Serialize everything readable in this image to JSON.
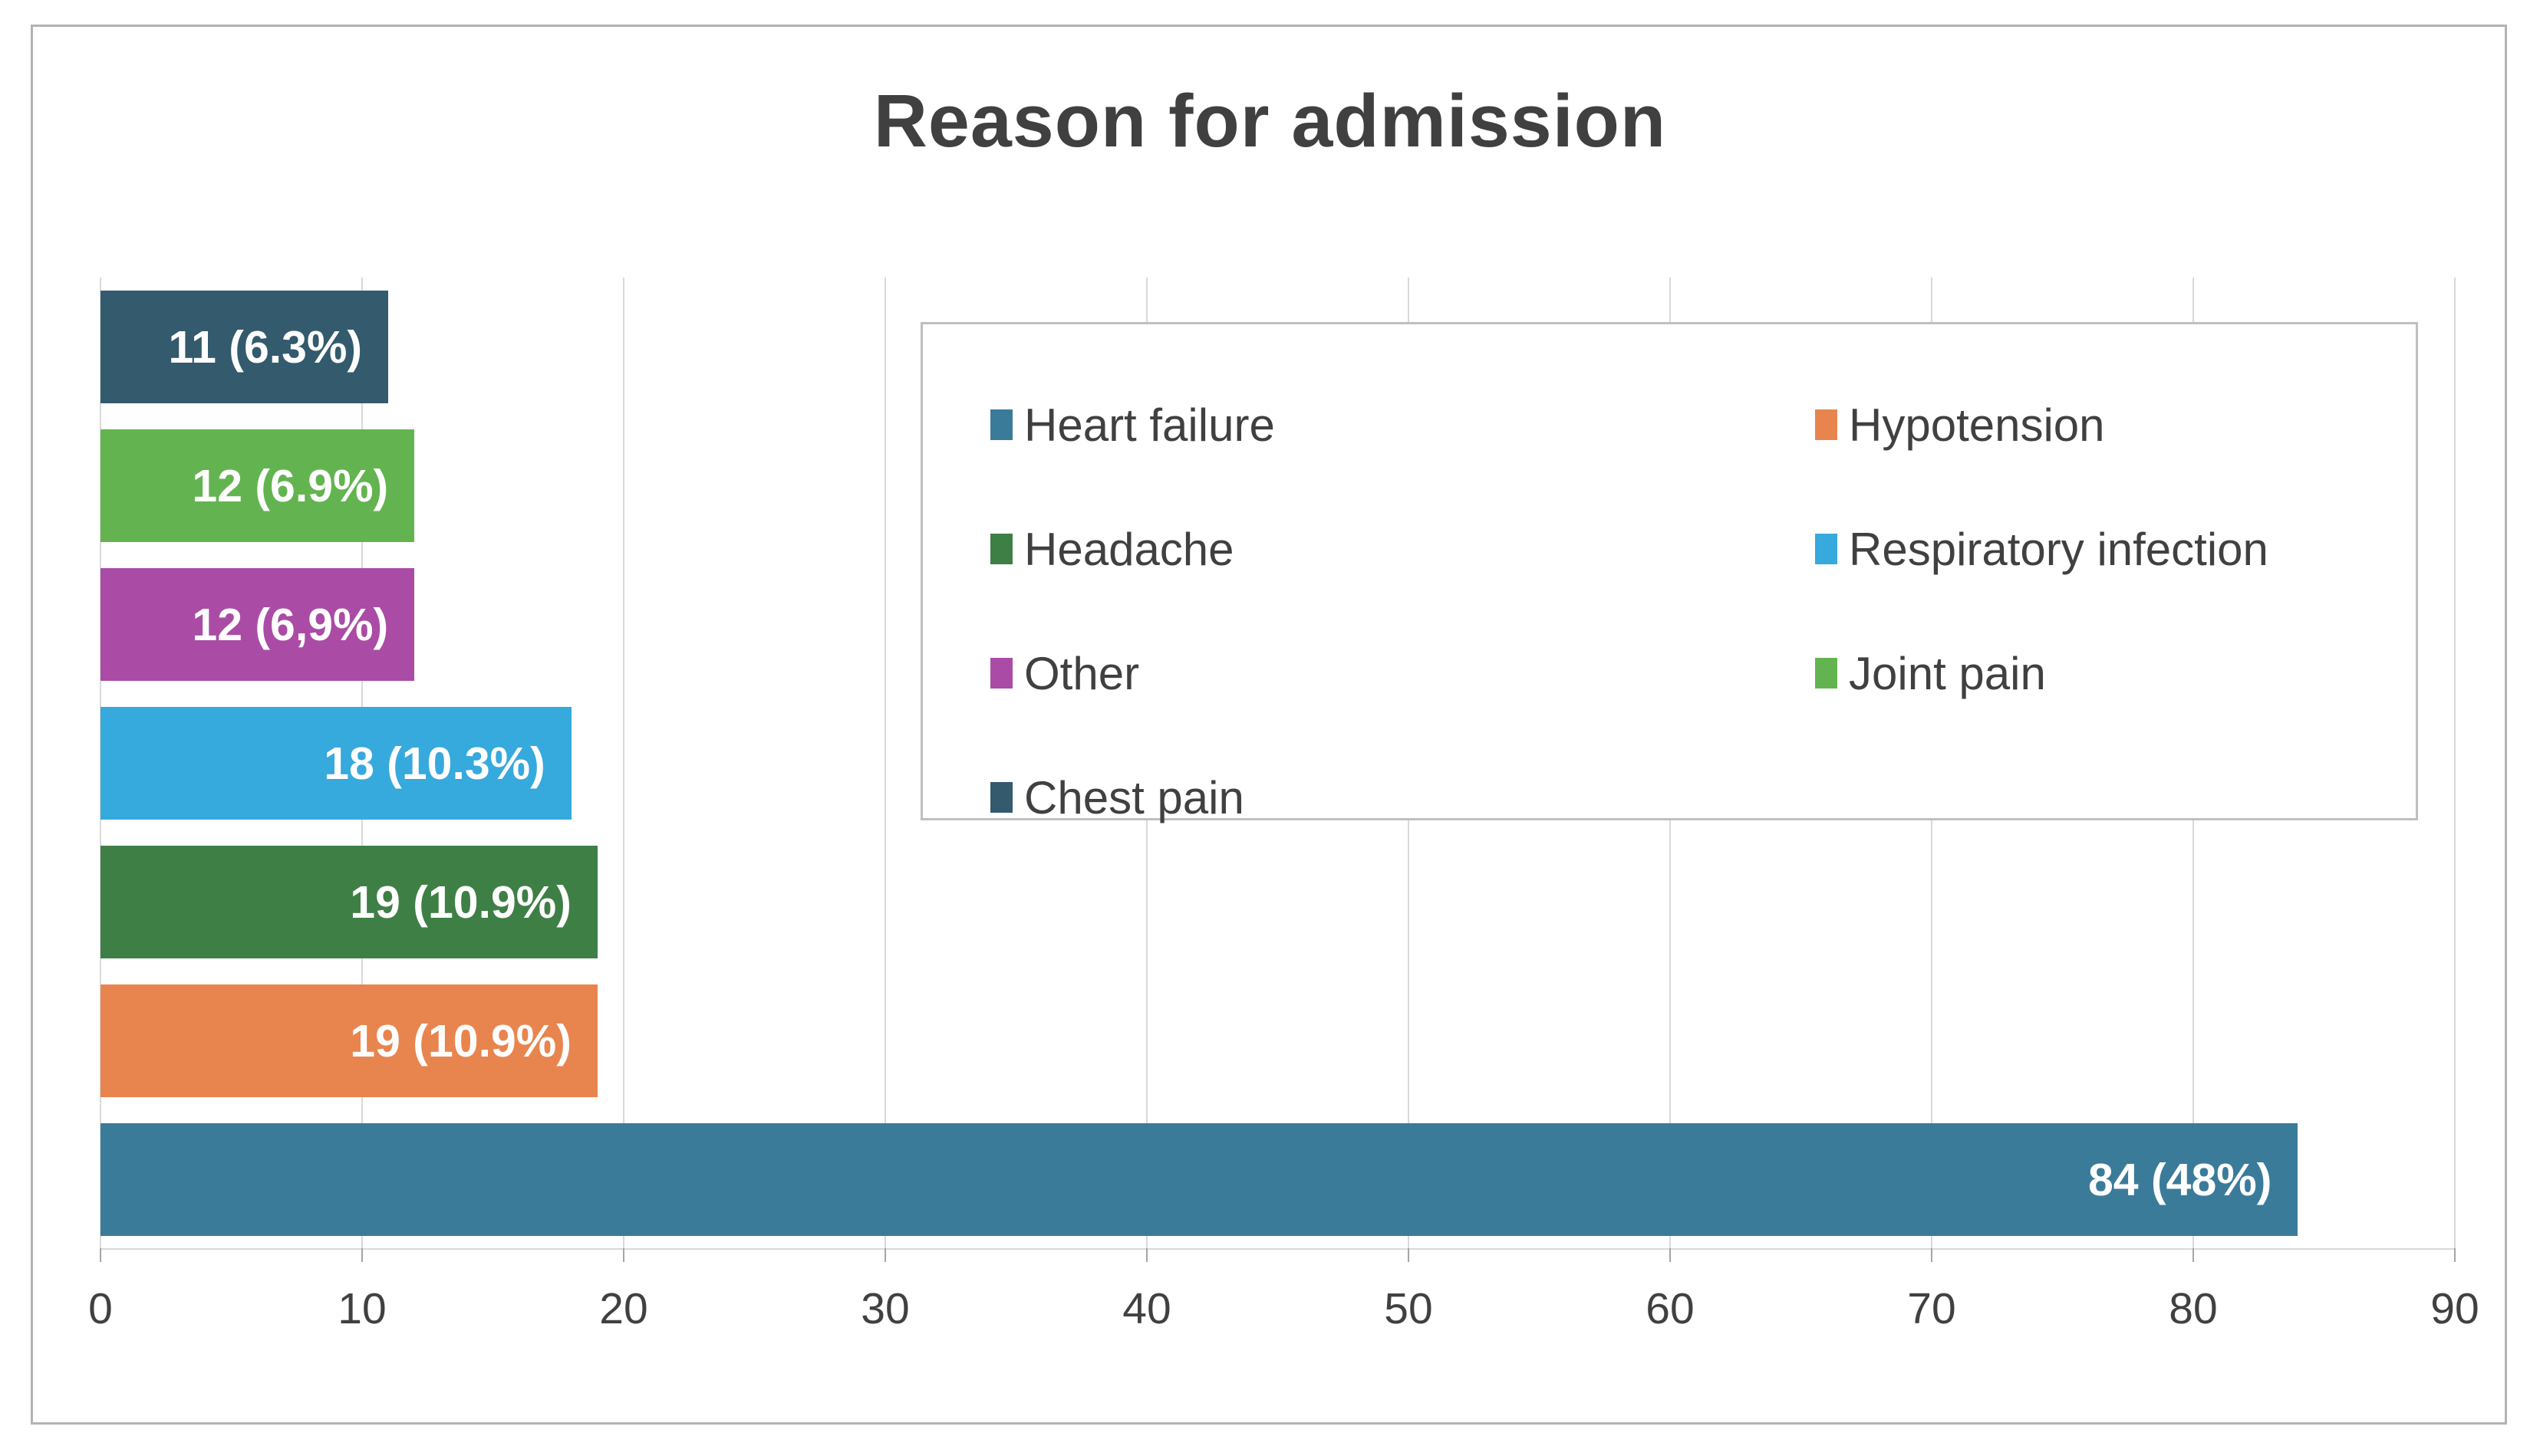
{
  "title": "Reason for admission",
  "colors": {
    "title_text": "#404040",
    "axis_text": "#404040",
    "legend_text": "#404040",
    "bar_label_text": "#ffffff",
    "gridline": "#d9d9d9",
    "tick_mark": "#a6a6a6",
    "frame_border": "#b3b3b3",
    "legend_border": "#bfbfbf",
    "background": "#ffffff"
  },
  "chart_data": {
    "type": "bar",
    "orientation": "horizontal",
    "title": "Reason for admission",
    "xlabel": "",
    "ylabel": "",
    "xlim": [
      0,
      90
    ],
    "x_ticks": [
      0,
      10,
      20,
      30,
      40,
      50,
      60,
      70,
      80,
      90
    ],
    "grid": true,
    "legend_position": "inside-upper-right",
    "bars_top_to_bottom": [
      {
        "category": "Chest pain",
        "value": 11,
        "label": "11 (6.3%)",
        "color": "#335a6d"
      },
      {
        "category": "Joint pain",
        "value": 12,
        "label": "12 (6.9%)",
        "color": "#63b450"
      },
      {
        "category": "Other",
        "value": 12,
        "label": "12 (6,9%)",
        "color": "#aa4ca5"
      },
      {
        "category": "Respiratory infection",
        "value": 18,
        "label": "18 (10.3%)",
        "color": "#36a9dd"
      },
      {
        "category": "Headache",
        "value": 19,
        "label": "19 (10.9%)",
        "color": "#3e7f45"
      },
      {
        "category": "Hypotension",
        "value": 19,
        "label": "19 (10.9%)",
        "color": "#e8854e"
      },
      {
        "category": "Heart failure",
        "value": 84,
        "label": "84 (48%)",
        "color": "#3b7b9a"
      }
    ],
    "legend": [
      {
        "label": "Heart failure",
        "color": "#3b7b9a"
      },
      {
        "label": "Hypotension",
        "color": "#e8854e"
      },
      {
        "label": "Headache",
        "color": "#3e7f45"
      },
      {
        "label": "Respiratory infection",
        "color": "#36a9dd"
      },
      {
        "label": "Other",
        "color": "#aa4ca5"
      },
      {
        "label": "Joint pain",
        "color": "#63b450"
      },
      {
        "label": "Chest pain",
        "color": "#335a6d"
      }
    ]
  }
}
